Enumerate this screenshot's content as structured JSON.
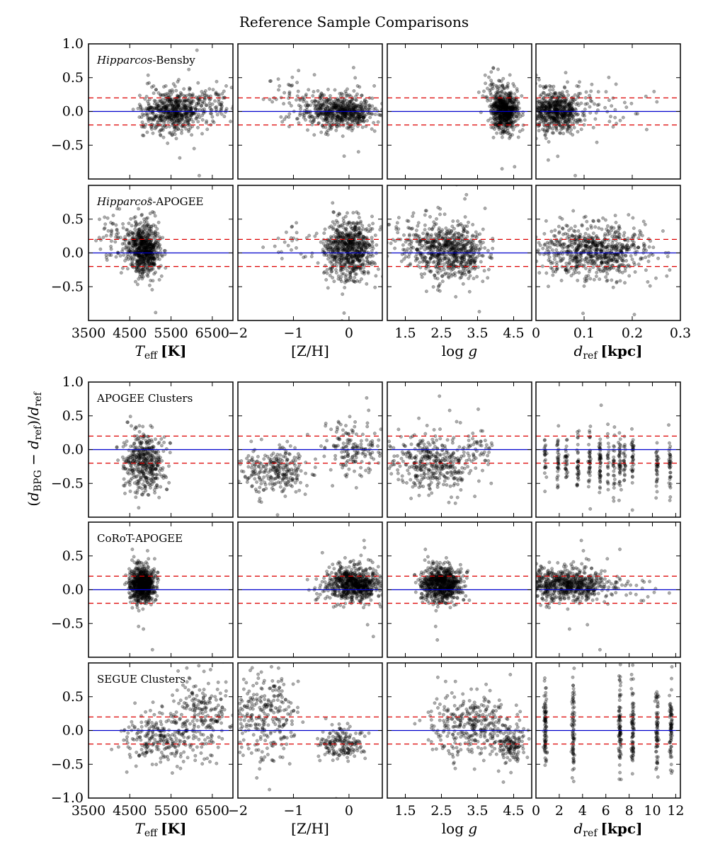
{
  "title": "Reference Sample Comparisons",
  "ylabel": "(d_BPG − d_ref)/d_ref",
  "colors": {
    "points": "#000000",
    "zero_line": "#0000cc",
    "band_lines": "#dd0000",
    "frame": "#000000"
  },
  "chart_data": {
    "type": "scatter",
    "y_range": [
      -1.0,
      1.0
    ],
    "y_ticks": [
      1.0,
      0.5,
      0.0,
      -0.5,
      -1.0
    ],
    "y_tick_labels": [
      "1.0",
      "0.5",
      "0.0",
      "−0.5",
      "−1.0"
    ],
    "reference_lines": {
      "zero": 0.0,
      "band": [
        0.2,
        -0.2
      ]
    },
    "columns": [
      {
        "key": "teff",
        "xlabel_sym": "T_eff",
        "xlabel_unit": "[K]",
        "x_range": [
          3500,
          7000
        ],
        "x_ticks": [
          3500,
          4500,
          5500,
          6500
        ],
        "x_tick_labels": [
          "3500",
          "4500",
          "5500",
          "6500"
        ]
      },
      {
        "key": "zh",
        "xlabel": "[Z/H]",
        "x_range": [
          -2.0,
          0.6
        ],
        "x_ticks": [
          -2,
          -1,
          0
        ],
        "x_tick_labels": [
          "−2",
          "−1",
          "0"
        ]
      },
      {
        "key": "logg",
        "xlabel": "log g",
        "x_range": [
          1.0,
          5.0
        ],
        "x_ticks": [
          1.5,
          2.5,
          3.5,
          4.5
        ],
        "x_tick_labels": [
          "1.5",
          "2.5",
          "3.5",
          "4.5"
        ]
      },
      {
        "key": "dref",
        "xlabel_sym": "d_ref",
        "xlabel_unit": "[kpc]",
        "x_range_top": [
          0,
          0.3
        ],
        "x_ticks_top": [
          0,
          0.1,
          0.2,
          0.3
        ],
        "x_tick_labels_top": [
          "0",
          "0.1",
          "0.2",
          "0.3"
        ],
        "x_range_bottom": [
          0,
          12.4
        ],
        "x_ticks_bottom": [
          0,
          2,
          4,
          6,
          8,
          10,
          12
        ],
        "x_tick_labels_bottom": [
          "0",
          "2",
          "4",
          "6",
          "8",
          "10",
          "12"
        ]
      }
    ],
    "samples": [
      {
        "label_italic": "Hipparcos",
        "label": "-Bensby",
        "n_points": [
          650,
          650,
          650,
          650
        ],
        "distributions": [
          [
            {
              "w": 1,
              "x": [
                5550,
                380
              ],
              "y": [
                0.0,
                0.15
              ]
            },
            {
              "w": 0.15,
              "x": [
                6400,
                350
              ],
              "y": [
                0.15,
                0.15
              ]
            }
          ],
          [
            {
              "w": 1,
              "x": [
                -0.15,
                0.3
              ],
              "y": [
                0.0,
                0.13
              ]
            },
            {
              "w": 0.1,
              "x": [
                -0.9,
                0.3
              ],
              "y": [
                0.15,
                0.2
              ]
            }
          ],
          [
            {
              "w": 1,
              "x": [
                4.25,
                0.18
              ],
              "y": [
                0.0,
                0.15
              ]
            },
            {
              "w": 0.08,
              "x": [
                3.9,
                0.2
              ],
              "y": [
                0.3,
                0.15
              ]
            }
          ],
          [
            {
              "w": 1,
              "x": [
                0.04,
                0.025
              ],
              "y": [
                0.0,
                0.15
              ]
            },
            {
              "w": 0.12,
              "x": [
                0.12,
                0.05
              ],
              "y": [
                0.05,
                0.18
              ]
            }
          ]
        ]
      },
      {
        "label_italic": "Hipparcos",
        "label": "-APOGEE",
        "n_points": [
          700,
          700,
          700,
          700
        ],
        "distributions": [
          [
            {
              "w": 1,
              "x": [
                4850,
                180
              ],
              "y": [
                0.05,
                0.2
              ]
            },
            {
              "w": 0.12,
              "x": [
                4200,
                250
              ],
              "y": [
                0.2,
                0.2
              ]
            }
          ],
          [
            {
              "w": 1,
              "x": [
                0.0,
                0.22
              ],
              "y": [
                0.05,
                0.22
              ]
            },
            {
              "w": 0.04,
              "x": [
                -1.0,
                0.3
              ],
              "y": [
                0.1,
                0.15
              ]
            }
          ],
          [
            {
              "w": 1,
              "x": [
                2.8,
                0.45
              ],
              "y": [
                0.02,
                0.22
              ]
            },
            {
              "w": 0.25,
              "x": [
                1.9,
                0.5
              ],
              "y": [
                0.15,
                0.18
              ]
            }
          ],
          [
            {
              "w": 1,
              "x": [
                0.12,
                0.055
              ],
              "y": [
                0.02,
                0.2
              ]
            }
          ]
        ]
      },
      {
        "label": "APOGEE Clusters",
        "n_points": [
          420,
          420,
          420,
          420
        ],
        "distributions": [
          [
            {
              "w": 1,
              "x": [
                4850,
                250
              ],
              "y": [
                -0.2,
                0.22
              ]
            }
          ],
          [
            {
              "w": 0.6,
              "x": [
                -1.35,
                0.3
              ],
              "y": [
                -0.3,
                0.18
              ]
            },
            {
              "w": 0.4,
              "x": [
                0.1,
                0.25
              ],
              "y": [
                0.0,
                0.2
              ]
            }
          ],
          [
            {
              "w": 1,
              "x": [
                2.3,
                0.55
              ],
              "y": [
                -0.2,
                0.22
              ]
            },
            {
              "w": 0.1,
              "x": [
                3.6,
                0.2
              ],
              "y": [
                0.05,
                0.1
              ]
            }
          ],
          [
            {
              "w": 1,
              "disc": [
                0.8,
                1.9,
                2.6,
                3.6,
                4.6,
                5.5,
                6.2,
                6.7,
                7.2,
                7.6,
                8.3,
                10.4,
                11.5
              ],
              "jit": 0.05,
              "y": [
                -0.2,
                0.2
              ]
            }
          ]
        ]
      },
      {
        "label": "CoRoT-APOGEE",
        "n_points": [
          700,
          700,
          700,
          700
        ],
        "distributions": [
          [
            {
              "w": 1,
              "x": [
                4800,
                150
              ],
              "y": [
                0.08,
                0.13
              ]
            }
          ],
          [
            {
              "w": 1,
              "x": [
                0.1,
                0.22
              ],
              "y": [
                0.08,
                0.13
              ]
            },
            {
              "w": 0.04,
              "x": [
                -0.4,
                0.2
              ],
              "y": [
                0.0,
                0.1
              ]
            }
          ],
          [
            {
              "w": 1,
              "x": [
                2.5,
                0.28
              ],
              "y": [
                0.08,
                0.13
              ]
            }
          ],
          [
            {
              "w": 1,
              "x": [
                2.5,
                1.8
              ],
              "y": [
                0.08,
                0.13
              ]
            },
            {
              "w": 0.05,
              "x": [
                8,
                2
              ],
              "y": [
                0.05,
                0.1
              ]
            }
          ]
        ]
      },
      {
        "label": "SEGUE Clusters",
        "n_points": [
          450,
          450,
          450,
          450
        ],
        "distributions": [
          [
            {
              "w": 0.45,
              "x": [
                6300,
                350
              ],
              "y": [
                0.2,
                0.3
              ]
            },
            {
              "w": 0.55,
              "x": [
                5200,
                450
              ],
              "y": [
                -0.1,
                0.2
              ]
            }
          ],
          [
            {
              "w": 0.55,
              "x": [
                -1.5,
                0.3
              ],
              "y": [
                0.2,
                0.3
              ]
            },
            {
              "w": 0.45,
              "x": [
                -0.15,
                0.2
              ],
              "y": [
                -0.2,
                0.12
              ]
            }
          ],
          [
            {
              "w": 0.65,
              "x": [
                3.3,
                0.55
              ],
              "y": [
                0.1,
                0.25
              ]
            },
            {
              "w": 0.35,
              "x": [
                4.4,
                0.2
              ],
              "y": [
                -0.2,
                0.15
              ]
            }
          ],
          [
            {
              "w": 1,
              "disc": [
                0.8,
                3.2,
                7.2,
                8.3,
                10.4,
                11.6
              ],
              "jit": 0.06,
              "y": [
                0.05,
                0.32
              ]
            }
          ]
        ]
      }
    ]
  }
}
